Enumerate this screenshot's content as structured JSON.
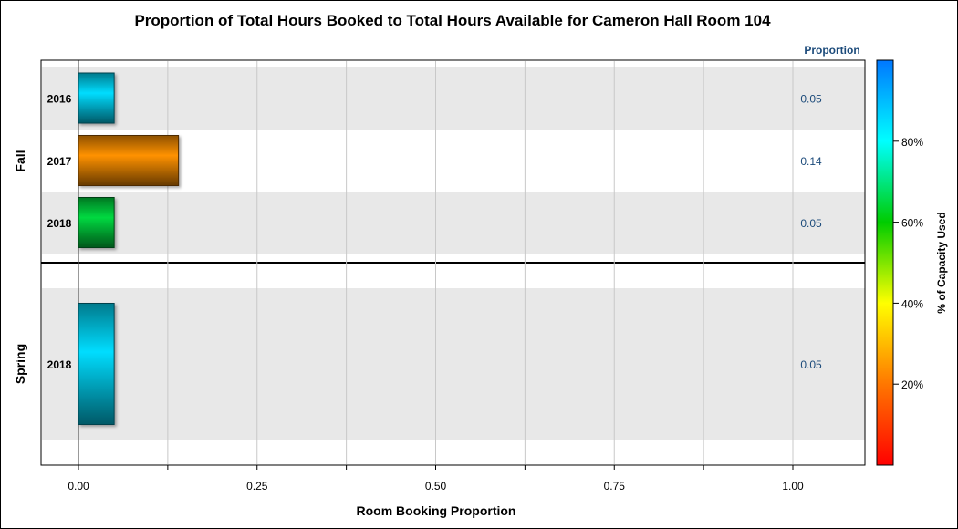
{
  "chart_data": {
    "type": "bar",
    "orientation": "horizontal",
    "title": "Proportion of Total Hours Booked to Total Hours Available for Cameron Hall Room 104",
    "xlabel": "Room Booking Proportion",
    "value_column_header": "Proportion",
    "xlim": [
      -0.05,
      1.1
    ],
    "x_ticks": [
      {
        "value": 0,
        "label": "0.00"
      },
      {
        "value": 0.25,
        "label": "0.25"
      },
      {
        "value": 0.5,
        "label": "0.50"
      },
      {
        "value": 0.75,
        "label": "0.75"
      },
      {
        "value": 1.0,
        "label": "1.00"
      }
    ],
    "minor_ticks": [
      0.125,
      0.375,
      0.625,
      0.875
    ],
    "grid": true,
    "groups": [
      {
        "name": "Fall",
        "rows": [
          {
            "category": "2016",
            "value": 0.05,
            "label": "0.05",
            "capacity_used_pct": 85
          },
          {
            "category": "2017",
            "value": 0.14,
            "label": "0.14",
            "capacity_used_pct": 24
          },
          {
            "category": "2018",
            "value": 0.05,
            "label": "0.05",
            "capacity_used_pct": 65
          }
        ]
      },
      {
        "name": "Spring",
        "rows": [
          {
            "category": "2018",
            "value": 0.05,
            "label": "0.05",
            "capacity_used_pct": 85
          }
        ]
      }
    ],
    "color_legend": {
      "title": "% of Capacity Used",
      "range": [
        0,
        100
      ],
      "ticks": [
        {
          "value": 20,
          "label": "20%"
        },
        {
          "value": 40,
          "label": "40%"
        },
        {
          "value": 60,
          "label": "60%"
        },
        {
          "value": 80,
          "label": "80%"
        }
      ],
      "gradient": [
        "#ff0000",
        "#ff7700",
        "#ffff00",
        "#00cc00",
        "#00ffff",
        "#0077ff"
      ]
    }
  }
}
